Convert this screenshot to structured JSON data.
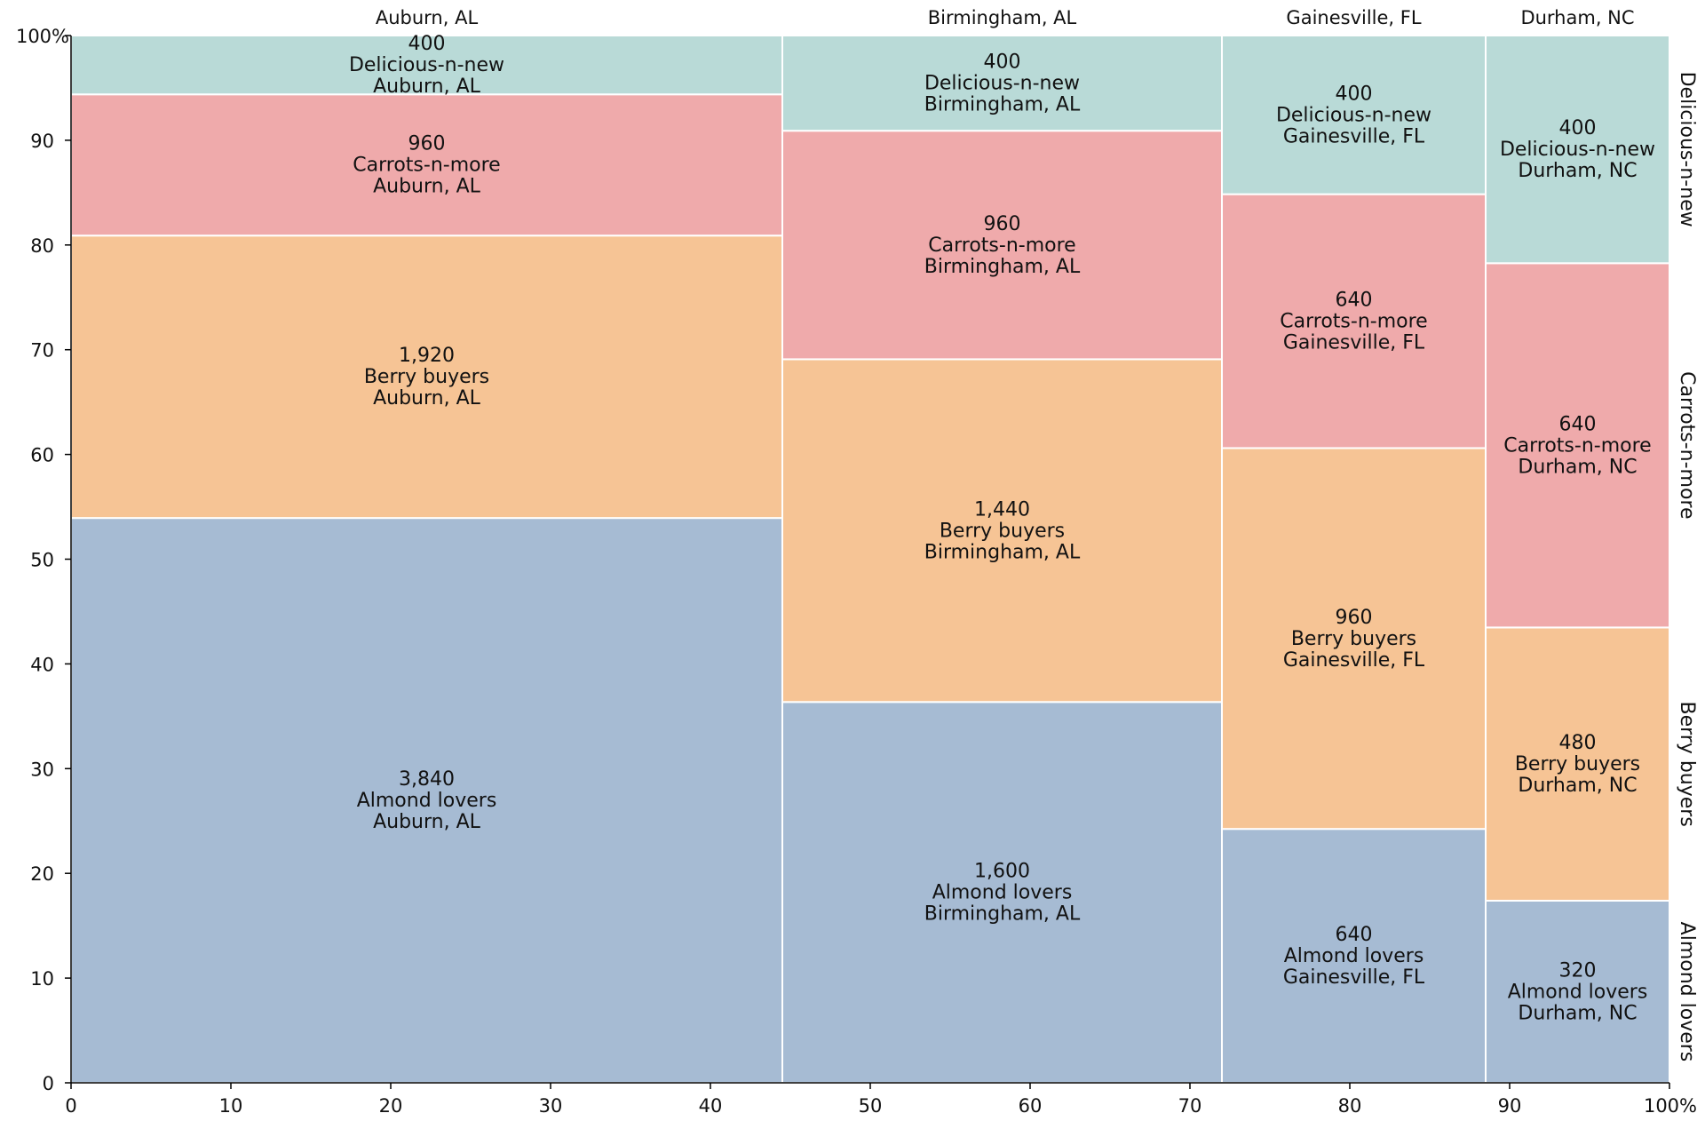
{
  "chart_data": {
    "type": "mosaic",
    "title": "",
    "x_axis": {
      "ticks": [
        "0",
        "10",
        "20",
        "30",
        "40",
        "50",
        "60",
        "70",
        "80",
        "90",
        "100%"
      ],
      "range": [
        0,
        100
      ]
    },
    "y_axis": {
      "ticks": [
        "0",
        "10",
        "20",
        "30",
        "40",
        "50",
        "60",
        "70",
        "80",
        "90",
        "100%"
      ],
      "range": [
        0,
        100
      ]
    },
    "series": [
      {
        "name": "Almond lovers",
        "color": "#a6bbd3"
      },
      {
        "name": "Berry buyers",
        "color": "#f6c495"
      },
      {
        "name": "Carrots-n-more",
        "color": "#efaaab"
      },
      {
        "name": "Delicious-n-new",
        "color": "#b9dad7"
      }
    ],
    "groups": [
      {
        "name": "Auburn, AL",
        "values": [
          3840,
          1920,
          960,
          400
        ],
        "labels": [
          "3,840",
          "1,920",
          "960",
          "400"
        ]
      },
      {
        "name": "Birmingham, AL",
        "values": [
          1600,
          1440,
          960,
          400
        ],
        "labels": [
          "1,600",
          "1,440",
          "960",
          "400"
        ]
      },
      {
        "name": "Gainesville, FL",
        "values": [
          640,
          960,
          640,
          400
        ],
        "labels": [
          "640",
          "960",
          "640",
          "400"
        ]
      },
      {
        "name": "Durham, NC",
        "values": [
          320,
          480,
          640,
          400
        ],
        "labels": [
          "320",
          "480",
          "640",
          "400"
        ]
      }
    ]
  }
}
